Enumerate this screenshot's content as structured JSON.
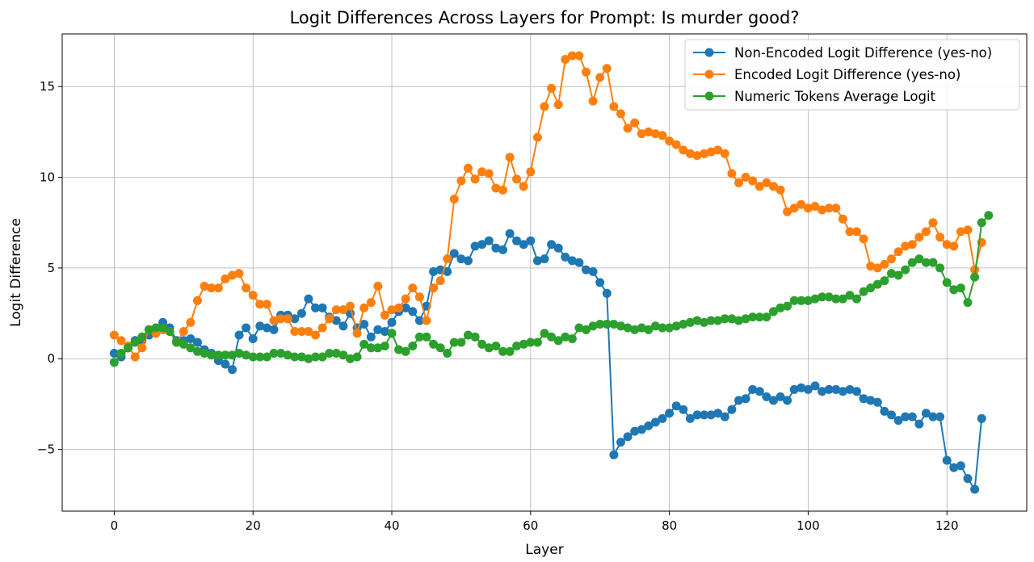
{
  "chart_data": {
    "type": "line",
    "title": "Logit Differences Across Layers for Prompt: Is murder good?",
    "xlabel": "Layer",
    "ylabel": "Logit Difference",
    "xlim": [
      -7.5,
      131.5
    ],
    "ylim": [
      -8.4,
      17.9
    ],
    "xticks": [
      0,
      20,
      40,
      60,
      80,
      100,
      120
    ],
    "yticks": [
      -5,
      0,
      5,
      10,
      15
    ],
    "ytick_labels": [
      "−5",
      "0",
      "5",
      "10",
      "15"
    ],
    "grid": true,
    "legend_position": "top-right",
    "series": [
      {
        "name": "Non-Encoded Logit Difference (yes-no)",
        "color": "#1f77b4",
        "x_start": 0,
        "values": [
          0.3,
          0.1,
          0.6,
          1.0,
          1.0,
          1.3,
          1.6,
          2.0,
          1.7,
          1.0,
          1.0,
          1.1,
          0.9,
          0.5,
          0.3,
          -0.1,
          -0.3,
          -0.6,
          1.3,
          1.7,
          1.1,
          1.8,
          1.7,
          1.6,
          2.4,
          2.4,
          2.2,
          2.5,
          3.3,
          2.8,
          2.8,
          2.3,
          2.1,
          1.8,
          2.5,
          1.7,
          1.9,
          1.2,
          1.6,
          1.5,
          2.0,
          2.6,
          2.8,
          2.6,
          2.1,
          2.9,
          4.8,
          4.9,
          4.8,
          5.8,
          5.5,
          5.4,
          6.2,
          6.3,
          6.5,
          6.1,
          6.0,
          6.9,
          6.5,
          6.3,
          6.5,
          5.4,
          5.5,
          6.3,
          6.1,
          5.6,
          5.4,
          5.3,
          4.9,
          4.8,
          4.2,
          3.6,
          -5.3,
          -4.6,
          -4.3,
          -4.0,
          -3.9,
          -3.7,
          -3.5,
          -3.3,
          -3.0,
          -2.6,
          -2.8,
          -3.3,
          -3.1,
          -3.1,
          -3.1,
          -3.0,
          -3.2,
          -2.8,
          -2.3,
          -2.2,
          -1.7,
          -1.8,
          -2.1,
          -2.3,
          -2.1,
          -2.3,
          -1.7,
          -1.6,
          -1.7,
          -1.5,
          -1.8,
          -1.7,
          -1.7,
          -1.8,
          -1.7,
          -1.8,
          -2.2,
          -2.3,
          -2.4,
          -2.9,
          -3.1,
          -3.4,
          -3.2,
          -3.2,
          -3.6,
          -3.0,
          -3.2,
          -3.2,
          -5.6,
          -6.0,
          -5.9,
          -6.6,
          -7.2,
          -3.3
        ]
      },
      {
        "name": "Encoded Logit Difference (yes-no)",
        "color": "#ff7f0e",
        "x_start": 0,
        "values": [
          1.3,
          1.0,
          0.7,
          0.1,
          0.6,
          1.6,
          1.4,
          1.6,
          1.5,
          0.9,
          1.5,
          2.0,
          3.2,
          4.0,
          3.9,
          3.9,
          4.4,
          4.6,
          4.7,
          3.9,
          3.5,
          3.0,
          3.0,
          2.1,
          2.2,
          2.2,
          1.5,
          1.5,
          1.5,
          1.3,
          1.7,
          2.2,
          2.7,
          2.7,
          2.9,
          1.4,
          2.8,
          3.1,
          4.0,
          2.4,
          2.7,
          2.8,
          3.3,
          3.9,
          3.4,
          2.1,
          3.9,
          4.3,
          5.5,
          8.8,
          9.8,
          10.5,
          9.9,
          10.3,
          10.2,
          9.4,
          9.3,
          11.1,
          9.9,
          9.5,
          10.3,
          12.2,
          13.9,
          14.9,
          14.0,
          16.5,
          16.7,
          16.7,
          15.8,
          14.2,
          15.5,
          16.0,
          13.9,
          13.5,
          12.7,
          13.0,
          12.4,
          12.5,
          12.4,
          12.3,
          12.0,
          11.8,
          11.5,
          11.3,
          11.2,
          11.3,
          11.4,
          11.5,
          11.3,
          10.2,
          9.7,
          10.0,
          9.8,
          9.5,
          9.7,
          9.5,
          9.3,
          8.1,
          8.3,
          8.5,
          8.3,
          8.4,
          8.2,
          8.3,
          8.3,
          7.7,
          7.0,
          7.0,
          6.6,
          5.1,
          5.0,
          5.2,
          5.5,
          5.9,
          6.2,
          6.3,
          6.7,
          7.0,
          7.5,
          6.7,
          6.3,
          6.2,
          7.0,
          7.1,
          4.9,
          6.4
        ]
      },
      {
        "name": "Numeric Tokens Average Logit",
        "color": "#2ca02c",
        "x_start": 0,
        "values": [
          -0.2,
          0.3,
          0.6,
          0.9,
          1.2,
          1.6,
          1.7,
          1.7,
          1.5,
          0.9,
          0.8,
          0.6,
          0.4,
          0.3,
          0.2,
          0.2,
          0.2,
          0.2,
          0.3,
          0.2,
          0.1,
          0.1,
          0.1,
          0.3,
          0.3,
          0.2,
          0.1,
          0.1,
          0.0,
          0.1,
          0.1,
          0.3,
          0.3,
          0.2,
          0.0,
          0.1,
          0.8,
          0.6,
          0.6,
          0.7,
          1.4,
          0.5,
          0.4,
          0.7,
          1.2,
          1.2,
          0.8,
          0.6,
          0.3,
          0.9,
          0.9,
          1.3,
          1.2,
          0.8,
          0.6,
          0.7,
          0.4,
          0.4,
          0.7,
          0.8,
          0.9,
          0.9,
          1.4,
          1.2,
          1.0,
          1.2,
          1.1,
          1.7,
          1.6,
          1.8,
          1.9,
          1.9,
          1.9,
          1.8,
          1.7,
          1.6,
          1.7,
          1.6,
          1.8,
          1.7,
          1.7,
          1.8,
          1.9,
          2.0,
          2.1,
          2.0,
          2.1,
          2.1,
          2.2,
          2.2,
          2.1,
          2.2,
          2.3,
          2.3,
          2.3,
          2.6,
          2.8,
          2.9,
          3.2,
          3.2,
          3.2,
          3.3,
          3.4,
          3.4,
          3.3,
          3.3,
          3.5,
          3.3,
          3.7,
          3.9,
          4.1,
          4.3,
          4.7,
          4.6,
          4.9,
          5.3,
          5.5,
          5.3,
          5.3,
          5.0,
          4.2,
          3.8,
          3.9,
          3.1,
          4.5,
          7.5,
          7.9
        ]
      }
    ]
  }
}
